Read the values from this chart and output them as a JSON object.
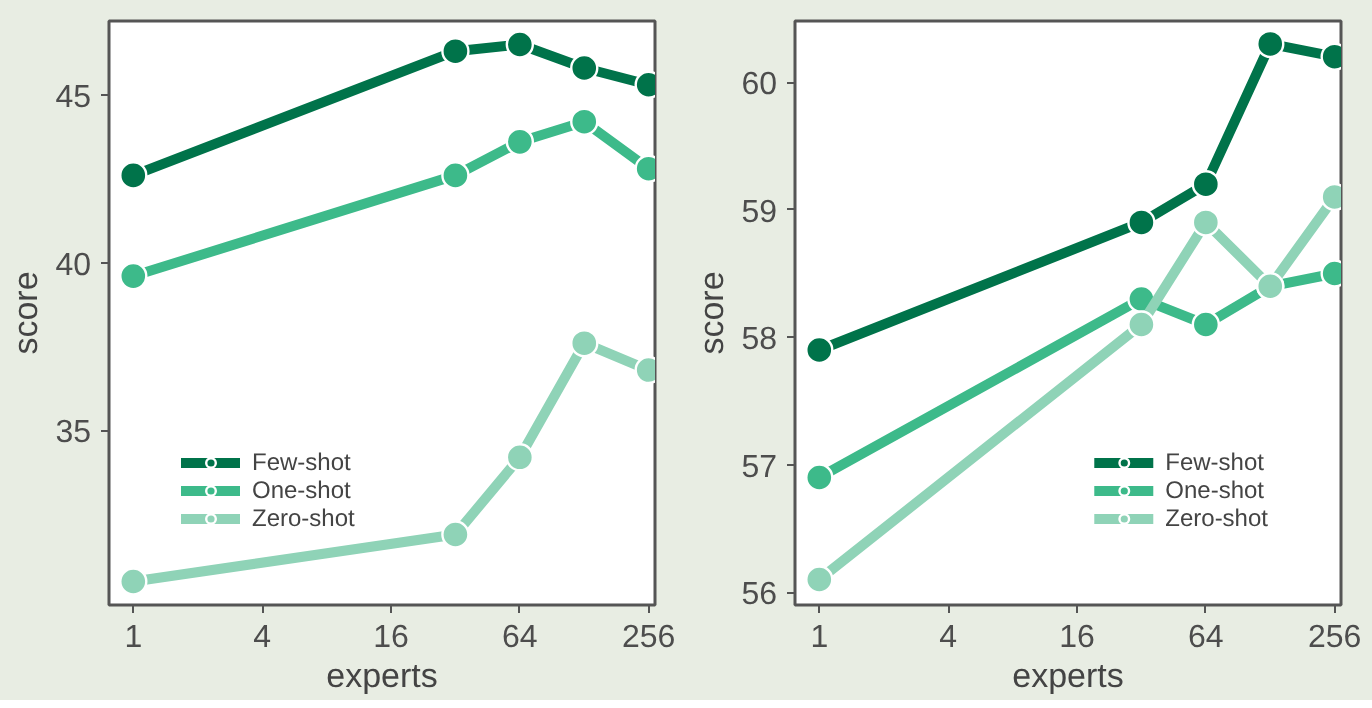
{
  "chart_data": [
    {
      "type": "line",
      "xlabel": "experts",
      "ylabel": "score",
      "x": [
        1,
        32,
        64,
        128,
        256
      ],
      "log": "x",
      "xlim": [
        0.77,
        274
      ],
      "xticks": [
        1,
        4,
        16,
        64,
        256
      ],
      "ylim": [
        29.8,
        47.2
      ],
      "yticks": [
        35,
        40,
        45
      ],
      "grid": false,
      "legend": "bottom left",
      "marker": "circle",
      "line_style": "solid",
      "series": [
        {
          "name": "Few-shot",
          "color": "#00734a",
          "values": [
            42.6,
            46.3,
            46.5,
            45.8,
            45.3
          ]
        },
        {
          "name": "One-shot",
          "color": "#3dba8a",
          "values": [
            39.6,
            42.6,
            43.6,
            44.2,
            42.8
          ]
        },
        {
          "name": "Zero-shot",
          "color": "#8fd3b7",
          "values": [
            30.5,
            31.9,
            34.2,
            37.6,
            36.8
          ]
        }
      ]
    },
    {
      "type": "line",
      "xlabel": "experts",
      "ylabel": "score",
      "x": [
        1,
        32,
        64,
        128,
        256
      ],
      "log": "x",
      "xlim": [
        0.77,
        274
      ],
      "xticks": [
        1,
        4,
        16,
        64,
        256
      ],
      "ylim": [
        55.9,
        60.48
      ],
      "yticks": [
        56,
        57,
        58,
        59,
        60
      ],
      "grid": false,
      "legend": "bottom right",
      "marker": "circle",
      "line_style": "solid",
      "series": [
        {
          "name": "Few-shot",
          "color": "#00734a",
          "values": [
            57.9,
            58.9,
            59.2,
            60.3,
            60.2
          ]
        },
        {
          "name": "One-shot",
          "color": "#3dba8a",
          "values": [
            56.9,
            58.3,
            58.1,
            58.4,
            58.5
          ]
        },
        {
          "name": "Zero-shot",
          "color": "#8fd3b7",
          "values": [
            56.1,
            58.1,
            58.9,
            58.4,
            59.1
          ]
        }
      ]
    }
  ]
}
